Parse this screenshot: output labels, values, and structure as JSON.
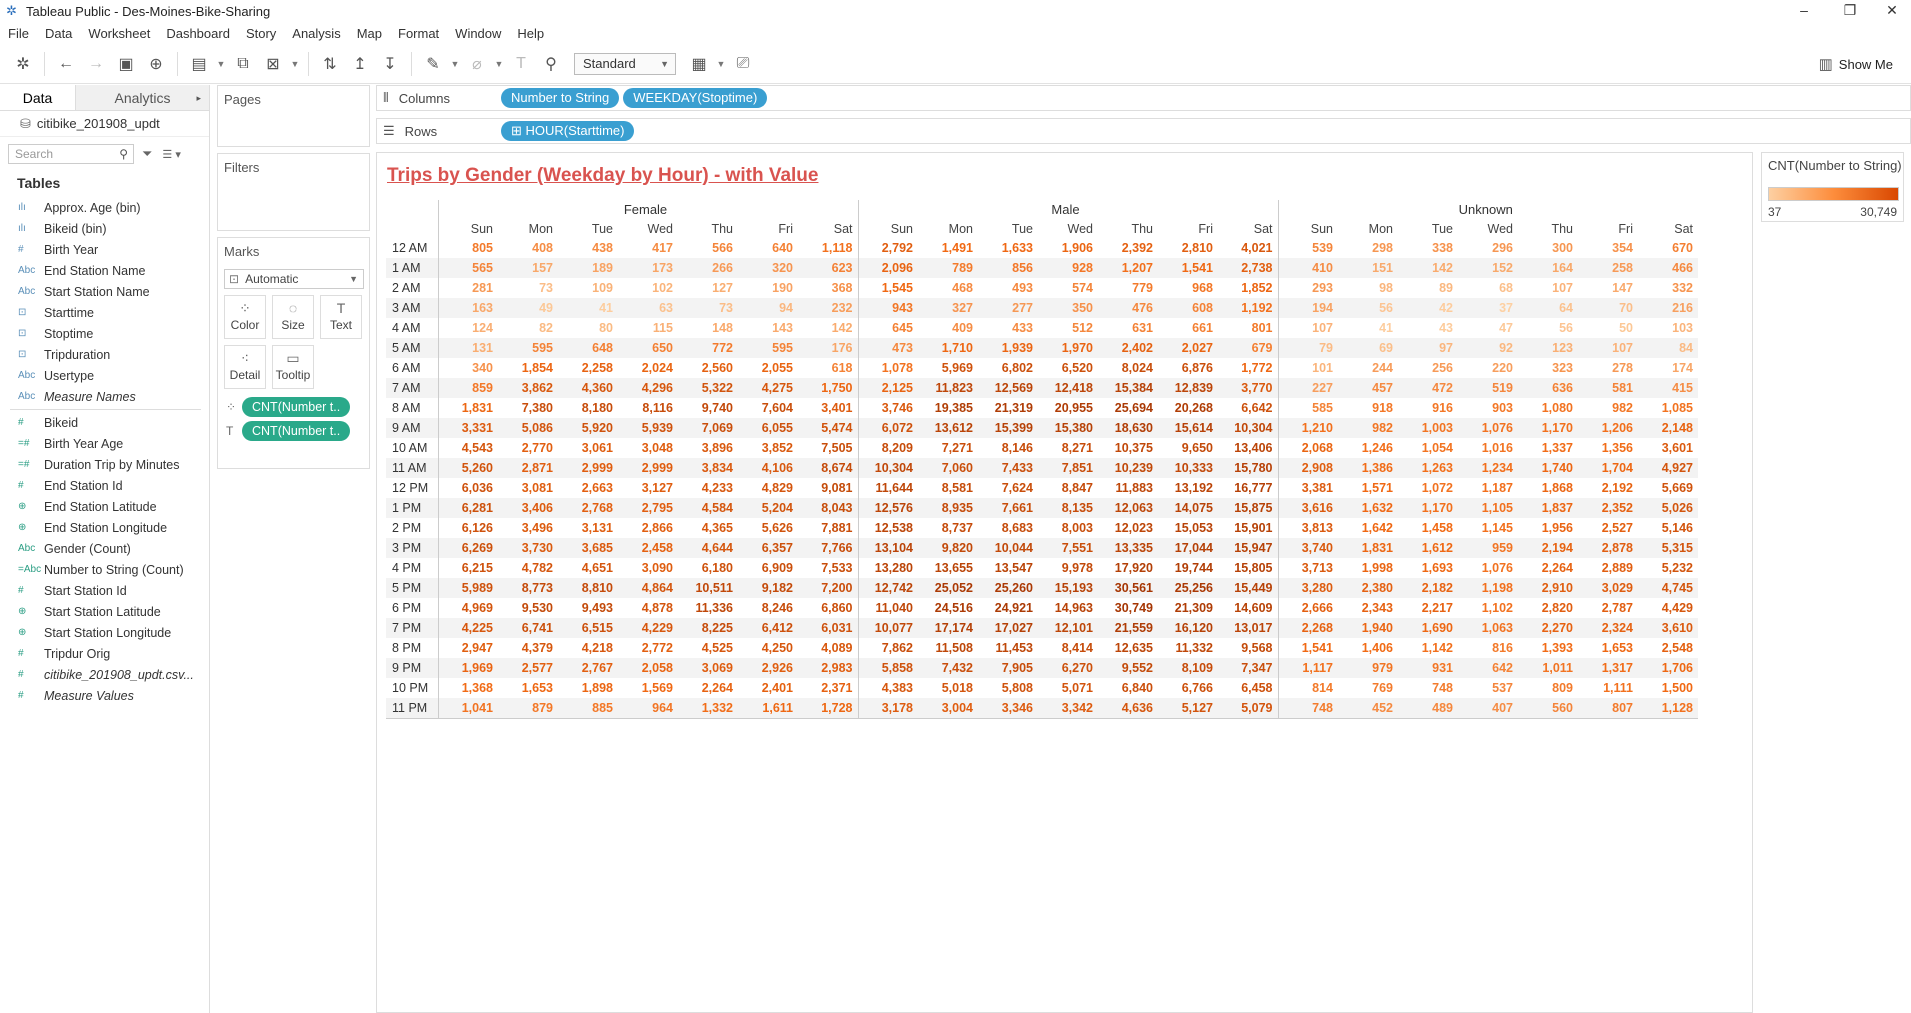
{
  "window": {
    "title": "Tableau Public - Des-Moines-Bike-Sharing"
  },
  "menu": [
    "File",
    "Data",
    "Worksheet",
    "Dashboard",
    "Story",
    "Analysis",
    "Map",
    "Format",
    "Window",
    "Help"
  ],
  "toolbar": {
    "view_mode": "Standard",
    "show_me": "Show Me"
  },
  "left_pane": {
    "tabs": [
      "Data",
      "Analytics"
    ],
    "datasource": "citibike_201908_updt",
    "search_placeholder": "Search",
    "tables_heading": "Tables",
    "dimensions": [
      {
        "name": "Approx. Age (bin)",
        "type": "bin",
        "italic": false
      },
      {
        "name": "Bikeid (bin)",
        "type": "bin",
        "italic": false
      },
      {
        "name": "Birth Year",
        "type": "number",
        "italic": false
      },
      {
        "name": "End Station Name",
        "type": "string",
        "italic": false
      },
      {
        "name": "Start Station Name",
        "type": "string",
        "italic": false
      },
      {
        "name": "Starttime",
        "type": "datetime",
        "italic": false
      },
      {
        "name": "Stoptime",
        "type": "datetime",
        "italic": false
      },
      {
        "name": "Tripduration",
        "type": "datetime",
        "italic": false
      },
      {
        "name": "Usertype",
        "type": "string",
        "italic": false
      },
      {
        "name": "Measure Names",
        "type": "string",
        "italic": true
      }
    ],
    "measures": [
      {
        "name": "Bikeid",
        "type": "number",
        "italic": false
      },
      {
        "name": "Birth Year Age",
        "type": "calc",
        "italic": false
      },
      {
        "name": "Duration Trip by Minutes",
        "type": "calc",
        "italic": false
      },
      {
        "name": "End Station Id",
        "type": "number",
        "italic": false
      },
      {
        "name": "End Station Latitude",
        "type": "geo",
        "italic": false
      },
      {
        "name": "End Station Longitude",
        "type": "geo",
        "italic": false
      },
      {
        "name": "Gender (Count)",
        "type": "string",
        "italic": false
      },
      {
        "name": "Number to String (Count)",
        "type": "calcstring",
        "italic": false
      },
      {
        "name": "Start Station Id",
        "type": "number",
        "italic": false
      },
      {
        "name": "Start Station Latitude",
        "type": "geo",
        "italic": false
      },
      {
        "name": "Start Station Longitude",
        "type": "geo",
        "italic": false
      },
      {
        "name": "Tripdur Orig",
        "type": "number",
        "italic": false
      },
      {
        "name": "citibike_201908_updt.csv...",
        "type": "number",
        "italic": true
      },
      {
        "name": "Measure Values",
        "type": "number",
        "italic": true
      }
    ]
  },
  "cards": {
    "pages": "Pages",
    "filters": "Filters",
    "marks": "Marks",
    "mark_type": "Automatic",
    "mark_buttons": [
      {
        "label": "Color",
        "glyph": "⁘"
      },
      {
        "label": "Size",
        "glyph": "◌"
      },
      {
        "label": "Text",
        "glyph": "T"
      },
      {
        "label": "Detail",
        "glyph": "⁖"
      },
      {
        "label": "Tooltip",
        "glyph": "▭"
      }
    ],
    "mark_pills": [
      {
        "icon": "⁘",
        "label": "CNT(Number t.."
      },
      {
        "icon": "T",
        "label": "CNT(Number t.."
      }
    ]
  },
  "shelves": {
    "columns_label": "Columns",
    "columns": [
      "Number to String",
      "WEEKDAY(Stoptime)"
    ],
    "rows_label": "Rows",
    "rows": [
      "⊞ HOUR(Starttime)"
    ]
  },
  "view": {
    "title": "Trips by Gender  (Weekday by Hour) - with Value"
  },
  "legend": {
    "title": "CNT(Number to String)",
    "min": "37",
    "max": "30,749",
    "colors": [
      "#fdd0a2",
      "#d94801"
    ]
  },
  "colors": {
    "pill_dimension": "#3a9fd1",
    "pill_measure": "#2aa98a",
    "title": "#d9534f"
  },
  "table": {
    "genders": [
      "Female",
      "Male",
      "Unknown"
    ],
    "weekdays": [
      "Sun",
      "Mon",
      "Tue",
      "Wed",
      "Thu",
      "Fri",
      "Sat"
    ],
    "hours": [
      "12 AM",
      "1 AM",
      "2 AM",
      "3 AM",
      "4 AM",
      "5 AM",
      "6 AM",
      "7 AM",
      "8 AM",
      "9 AM",
      "10 AM",
      "11 AM",
      "12 PM",
      "1 PM",
      "2 PM",
      "3 PM",
      "4 PM",
      "5 PM",
      "6 PM",
      "7 PM",
      "8 PM",
      "9 PM",
      "10 PM",
      "11 PM"
    ],
    "rows": [
      [
        805,
        408,
        438,
        417,
        566,
        640,
        1118,
        2792,
        1491,
        1633,
        1906,
        2392,
        2810,
        4021,
        539,
        298,
        338,
        296,
        300,
        354,
        670
      ],
      [
        565,
        157,
        189,
        173,
        266,
        320,
        623,
        2096,
        789,
        856,
        928,
        1207,
        1541,
        2738,
        410,
        151,
        142,
        152,
        164,
        258,
        466
      ],
      [
        281,
        73,
        109,
        102,
        127,
        190,
        368,
        1545,
        468,
        493,
        574,
        779,
        968,
        1852,
        293,
        98,
        89,
        68,
        107,
        147,
        332
      ],
      [
        163,
        49,
        41,
        63,
        73,
        94,
        232,
        943,
        327,
        277,
        350,
        476,
        608,
        1192,
        194,
        56,
        42,
        37,
        64,
        70,
        216
      ],
      [
        124,
        82,
        80,
        115,
        148,
        143,
        142,
        645,
        409,
        433,
        512,
        631,
        661,
        801,
        107,
        41,
        43,
        47,
        56,
        50,
        103
      ],
      [
        131,
        595,
        648,
        650,
        772,
        595,
        176,
        473,
        1710,
        1939,
        1970,
        2402,
        2027,
        679,
        79,
        69,
        97,
        92,
        123,
        107,
        84
      ],
      [
        340,
        1854,
        2258,
        2024,
        2560,
        2055,
        618,
        1078,
        5969,
        6802,
        6520,
        8024,
        6876,
        1772,
        101,
        244,
        256,
        220,
        323,
        278,
        174
      ],
      [
        859,
        3862,
        4360,
        4296,
        5322,
        4275,
        1750,
        2125,
        11823,
        12569,
        12418,
        15384,
        12839,
        3770,
        227,
        457,
        472,
        519,
        636,
        581,
        415
      ],
      [
        1831,
        7380,
        8180,
        8116,
        9740,
        7604,
        3401,
        3746,
        19385,
        21319,
        20955,
        25694,
        20268,
        6642,
        585,
        918,
        916,
        903,
        1080,
        982,
        1085
      ],
      [
        3331,
        5086,
        5920,
        5939,
        7069,
        6055,
        5474,
        6072,
        13612,
        15399,
        15380,
        18630,
        15614,
        10304,
        1210,
        982,
        1003,
        1076,
        1170,
        1206,
        2148
      ],
      [
        4543,
        2770,
        3061,
        3048,
        3896,
        3852,
        7505,
        8209,
        7271,
        8146,
        8271,
        10375,
        9650,
        13406,
        2068,
        1246,
        1054,
        1016,
        1337,
        1356,
        3601
      ],
      [
        5260,
        2871,
        2999,
        2999,
        3834,
        4106,
        8674,
        10304,
        7060,
        7433,
        7851,
        10239,
        10333,
        15780,
        2908,
        1386,
        1263,
        1234,
        1740,
        1704,
        4927
      ],
      [
        6036,
        3081,
        2663,
        3127,
        4233,
        4829,
        9081,
        11644,
        8581,
        7624,
        8847,
        11883,
        13192,
        16777,
        3381,
        1571,
        1072,
        1187,
        1868,
        2192,
        5669
      ],
      [
        6281,
        3406,
        2768,
        2795,
        4584,
        5204,
        8043,
        12576,
        8935,
        7661,
        8135,
        12063,
        14075,
        15875,
        3616,
        1632,
        1170,
        1105,
        1837,
        2352,
        5026
      ],
      [
        6126,
        3496,
        3131,
        2866,
        4365,
        5626,
        7881,
        12538,
        8737,
        8683,
        8003,
        12023,
        15053,
        15901,
        3813,
        1642,
        1458,
        1145,
        1956,
        2527,
        5146
      ],
      [
        6269,
        3730,
        3685,
        2458,
        4644,
        6357,
        7766,
        13104,
        9820,
        10044,
        7551,
        13335,
        17044,
        15947,
        3740,
        1831,
        1612,
        959,
        2194,
        2878,
        5315
      ],
      [
        6215,
        4782,
        4651,
        3090,
        6180,
        6909,
        7533,
        13280,
        13655,
        13547,
        9978,
        17920,
        19744,
        15805,
        3713,
        1998,
        1693,
        1076,
        2264,
        2889,
        5232
      ],
      [
        5989,
        8773,
        8810,
        4864,
        10511,
        9182,
        7200,
        12742,
        25052,
        25260,
        15193,
        30561,
        25256,
        15449,
        3280,
        2380,
        2182,
        1198,
        2910,
        3029,
        4745
      ],
      [
        4969,
        9530,
        9493,
        4878,
        11336,
        8246,
        6860,
        11040,
        24516,
        24921,
        14963,
        30749,
        21309,
        14609,
        2666,
        2343,
        2217,
        1102,
        2820,
        2787,
        4429
      ],
      [
        4225,
        6741,
        6515,
        4229,
        8225,
        6412,
        6031,
        10077,
        17174,
        17027,
        12101,
        21559,
        16120,
        13017,
        2268,
        1940,
        1690,
        1063,
        2270,
        2324,
        3610
      ],
      [
        2947,
        4379,
        4218,
        2772,
        4525,
        4250,
        4089,
        7862,
        11508,
        11453,
        8414,
        12635,
        11332,
        9568,
        1541,
        1406,
        1142,
        816,
        1393,
        1653,
        2548
      ],
      [
        1969,
        2577,
        2767,
        2058,
        3069,
        2926,
        2983,
        5858,
        7432,
        7905,
        6270,
        9552,
        8109,
        7347,
        1117,
        979,
        931,
        642,
        1011,
        1317,
        1706
      ],
      [
        1368,
        1653,
        1898,
        1569,
        2264,
        2401,
        2371,
        4383,
        5018,
        5808,
        5071,
        6840,
        6766,
        6458,
        814,
        769,
        748,
        537,
        809,
        1111,
        1500
      ],
      [
        1041,
        879,
        885,
        964,
        1332,
        1611,
        1728,
        3178,
        3004,
        3346,
        3342,
        4636,
        5127,
        5079,
        748,
        452,
        489,
        407,
        560,
        807,
        1128
      ]
    ]
  }
}
